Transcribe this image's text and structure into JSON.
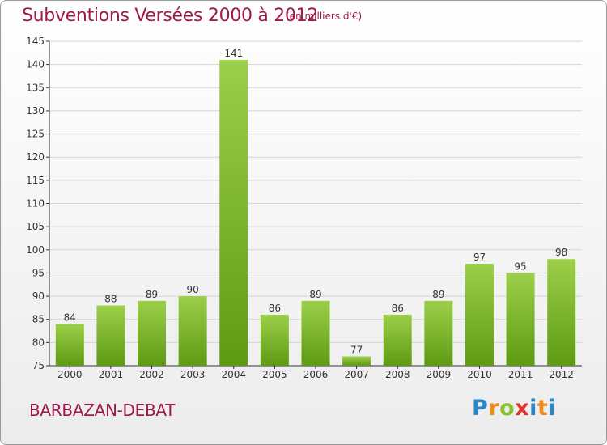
{
  "header": {
    "title": "Subventions Versées 2000 à 2012",
    "subtitle": "(en milliers d'€)"
  },
  "footer": {
    "commune": "BARBAZAN-DEBAT",
    "logo_text": "Proxiti"
  },
  "colors": {
    "title": "#a0174b",
    "bar_light": "#9ccf4a",
    "bar_dark": "#5e9a14",
    "grid": "#d4d4d4",
    "axis": "#333333"
  },
  "chart_data": {
    "type": "bar",
    "title": "Subventions Versées 2000 à 2012",
    "subtitle": "(en milliers d'€)",
    "categories": [
      "2000",
      "2001",
      "2002",
      "2003",
      "2004",
      "2005",
      "2006",
      "2007",
      "2008",
      "2009",
      "2010",
      "2011",
      "2012"
    ],
    "values": [
      84,
      88,
      89,
      90,
      141,
      86,
      89,
      77,
      86,
      89,
      97,
      95,
      98
    ],
    "xlabel": "",
    "ylabel": "",
    "ylim": [
      75,
      145
    ],
    "yticks": [
      75,
      80,
      85,
      90,
      95,
      100,
      105,
      110,
      115,
      120,
      125,
      130,
      135,
      140,
      145
    ],
    "grid": true,
    "legend": "none"
  }
}
